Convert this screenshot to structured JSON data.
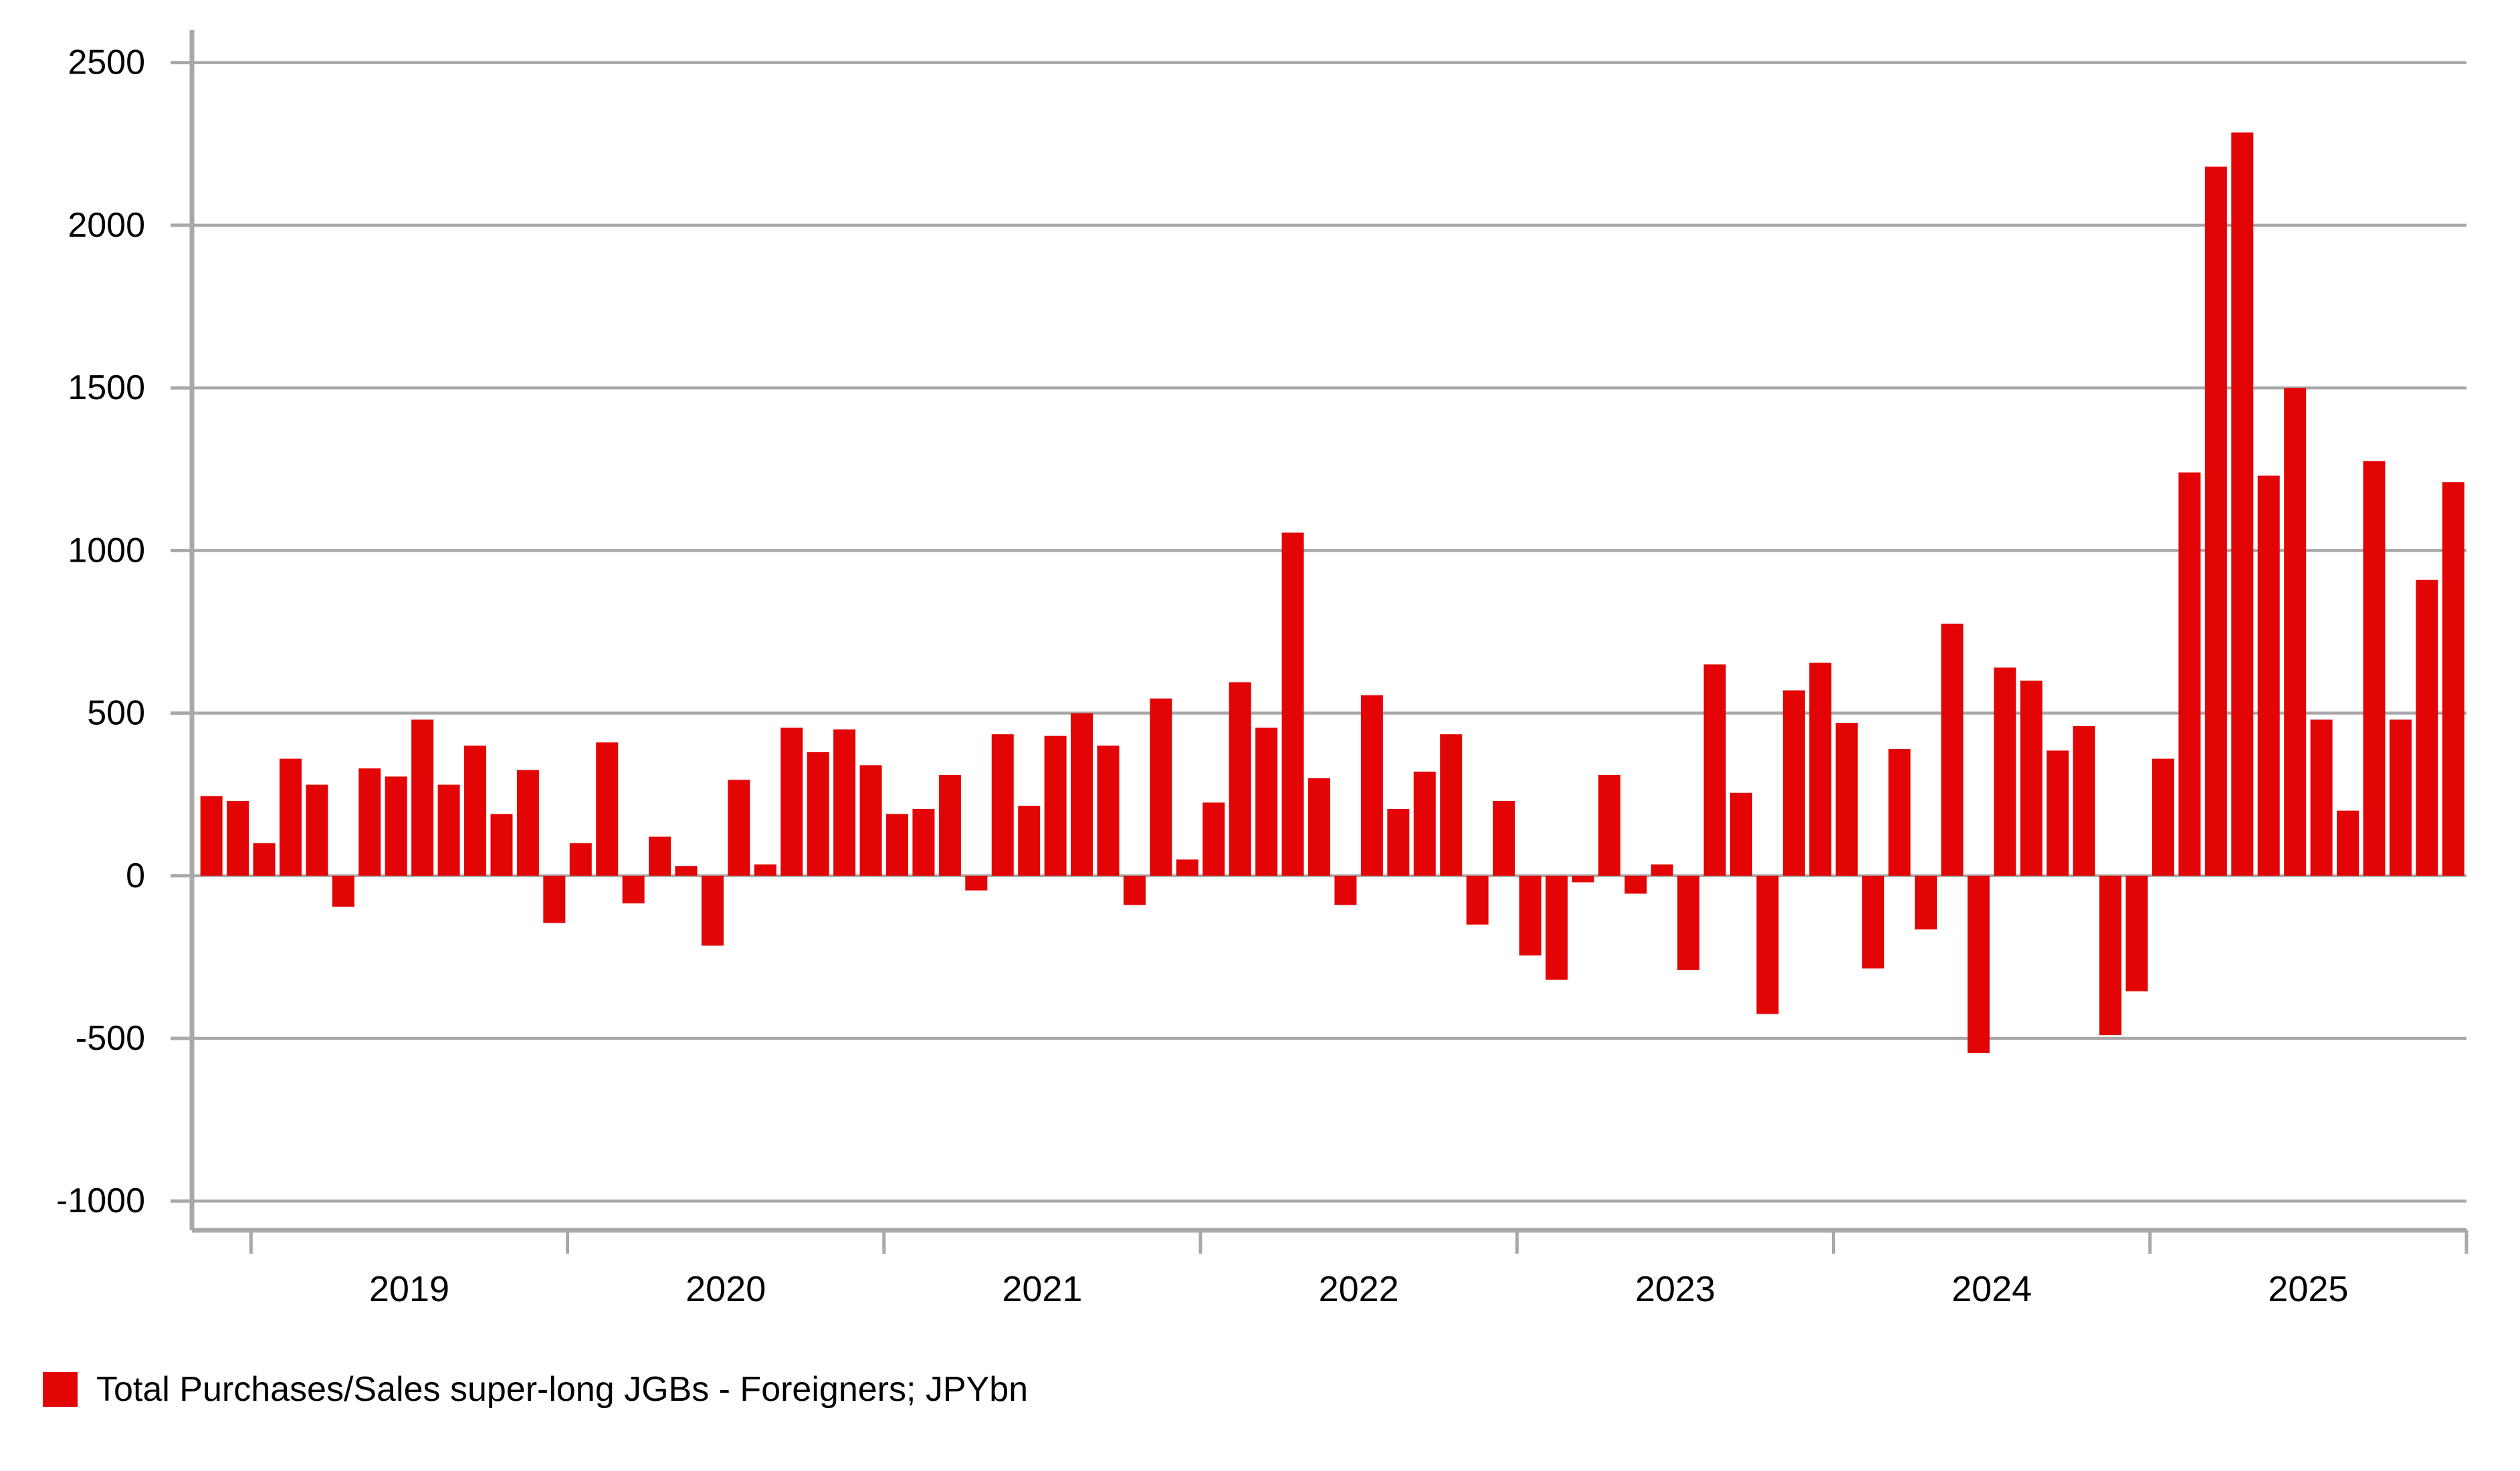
{
  "legend": {
    "label": "Total Purchases/Sales super-long JGBs - Foreigners; JPYbn"
  },
  "colors": {
    "bar": "#e30505",
    "axis": "#a8a8a8",
    "grid": "#a8a8a8",
    "text": "#000000",
    "background": "#ffffff"
  },
  "chart_data": {
    "type": "bar",
    "title": "",
    "xlabel": "",
    "ylabel": "",
    "ylim": [
      -1090,
      2600
    ],
    "yticks": [
      -1000,
      -500,
      0,
      500,
      1000,
      1500,
      2000,
      2500
    ],
    "ytick_labels": [
      "-1000",
      "-500",
      "0",
      "500",
      "1000",
      "1500",
      "2000",
      "2500"
    ],
    "year_ticks": [
      2019,
      2020,
      2021,
      2022,
      2023,
      2024,
      2025
    ],
    "grid": true,
    "legend_position": "bottom-left",
    "series": [
      {
        "name": "Total Purchases/Sales super-long JGBs - Foreigners; JPYbn",
        "x": [
          "2018-11",
          "2018-12",
          "2019-01",
          "2019-02",
          "2019-03",
          "2019-04",
          "2019-05",
          "2019-06",
          "2019-07",
          "2019-08",
          "2019-09",
          "2019-10",
          "2019-11",
          "2019-12",
          "2020-01",
          "2020-02",
          "2020-03",
          "2020-04",
          "2020-05",
          "2020-06",
          "2020-07",
          "2020-08",
          "2020-09",
          "2020-10",
          "2020-11",
          "2020-12",
          "2021-01",
          "2021-02",
          "2021-03",
          "2021-04",
          "2021-05",
          "2021-06",
          "2021-07",
          "2021-08",
          "2021-09",
          "2021-10",
          "2021-11",
          "2021-12",
          "2022-01",
          "2022-02",
          "2022-03",
          "2022-04",
          "2022-05",
          "2022-06",
          "2022-07",
          "2022-08",
          "2022-09",
          "2022-10",
          "2022-11",
          "2022-12",
          "2023-01",
          "2023-02",
          "2023-03",
          "2023-04",
          "2023-05",
          "2023-06",
          "2023-07",
          "2023-08",
          "2023-09",
          "2023-10",
          "2023-11",
          "2023-12",
          "2024-01",
          "2024-02",
          "2024-03",
          "2024-04",
          "2024-05",
          "2024-06",
          "2024-07",
          "2024-08",
          "2024-09",
          "2024-10",
          "2024-11",
          "2024-12",
          "2025-01",
          "2025-02",
          "2025-03",
          "2025-04",
          "2025-05",
          "2025-06",
          "2025-07",
          "2025-08",
          "2025-09",
          "2025-10",
          "2025-11",
          "2025-12"
        ],
        "values": [
          245,
          230,
          100,
          360,
          280,
          -95,
          330,
          305,
          480,
          280,
          400,
          190,
          325,
          -145,
          100,
          410,
          -85,
          120,
          30,
          -215,
          295,
          35,
          455,
          380,
          450,
          340,
          190,
          205,
          310,
          -45,
          435,
          215,
          430,
          500,
          400,
          -90,
          545,
          50,
          225,
          595,
          455,
          1055,
          300,
          -90,
          555,
          205,
          320,
          435,
          -150,
          230,
          -245,
          -320,
          -20,
          310,
          -55,
          35,
          -290,
          650,
          255,
          -425,
          570,
          655,
          470,
          -285,
          390,
          -165,
          775,
          -545,
          640,
          600,
          385,
          460,
          -490,
          -355,
          360,
          1240,
          2180,
          2285,
          1230,
          1500,
          480,
          200,
          1275,
          480,
          910,
          1210
        ]
      }
    ]
  }
}
